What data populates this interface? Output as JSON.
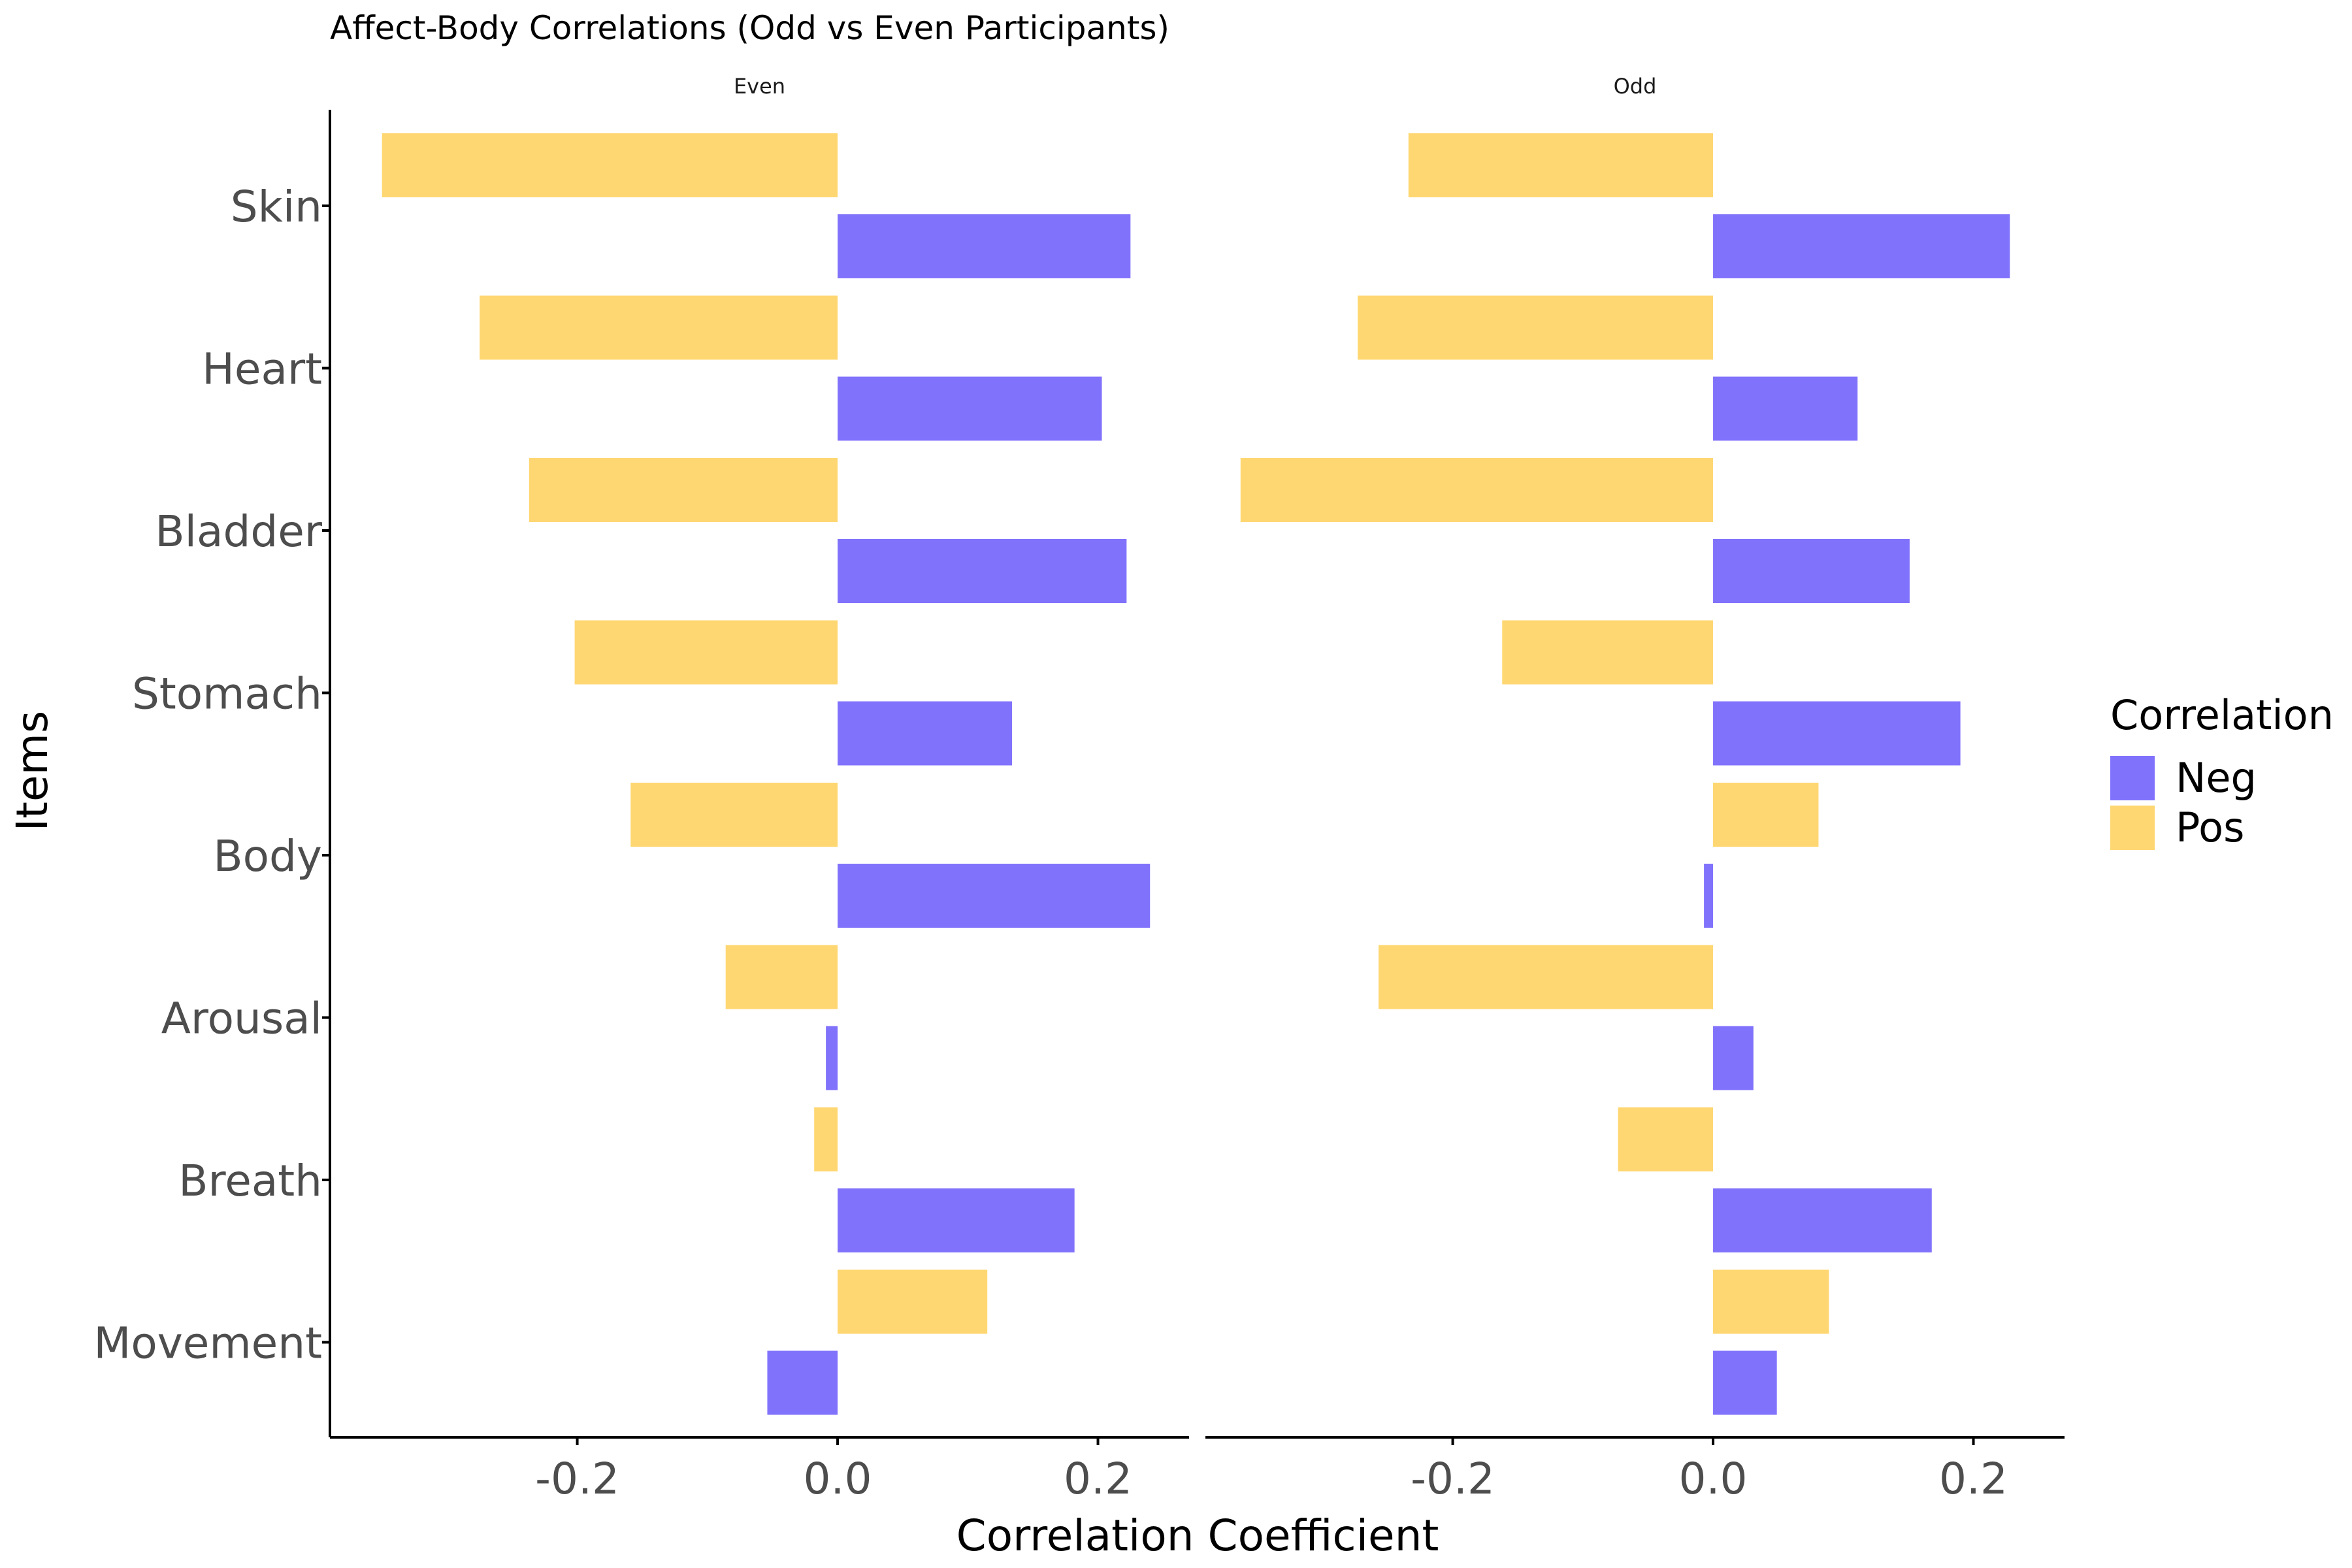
{
  "chart_data": {
    "type": "bar",
    "orientation": "horizontal",
    "title": "Affect-Body Correlations (Odd vs Even Participants)",
    "xlabel": "Correlation Coefficient",
    "ylabel": "Items",
    "xlim": [
      -0.39,
      0.27
    ],
    "x_ticks": [
      {
        "value": -0.2,
        "label": "-0.2"
      },
      {
        "value": 0.0,
        "label": "0.0"
      },
      {
        "value": 0.2,
        "label": "0.2"
      }
    ],
    "grid": false,
    "categories": [
      "Skin",
      "Heart",
      "Bladder",
      "Stomach",
      "Body",
      "Arousal",
      "Breath",
      "Movement"
    ],
    "legend": {
      "title": "Correlation",
      "position": "right",
      "entries": [
        {
          "name": "Neg",
          "color": "#8172FC"
        },
        {
          "name": "Pos",
          "color": "#FFD772"
        }
      ]
    },
    "panels": [
      {
        "label": "Even",
        "series": [
          {
            "name": "Pos",
            "values": [
              -0.35,
              -0.275,
              -0.237,
              -0.202,
              -0.159,
              -0.086,
              -0.018,
              0.115
            ]
          },
          {
            "name": "Neg",
            "values": [
              0.225,
              0.203,
              0.222,
              0.134,
              0.24,
              -0.009,
              0.182,
              -0.054
            ]
          }
        ]
      },
      {
        "label": "Odd",
        "series": [
          {
            "name": "Pos",
            "values": [
              -0.234,
              -0.273,
              -0.363,
              -0.162,
              0.081,
              -0.257,
              -0.073,
              0.089
            ]
          },
          {
            "name": "Neg",
            "values": [
              0.228,
              0.111,
              0.151,
              0.19,
              -0.007,
              0.031,
              0.168,
              0.049
            ]
          }
        ]
      }
    ]
  }
}
